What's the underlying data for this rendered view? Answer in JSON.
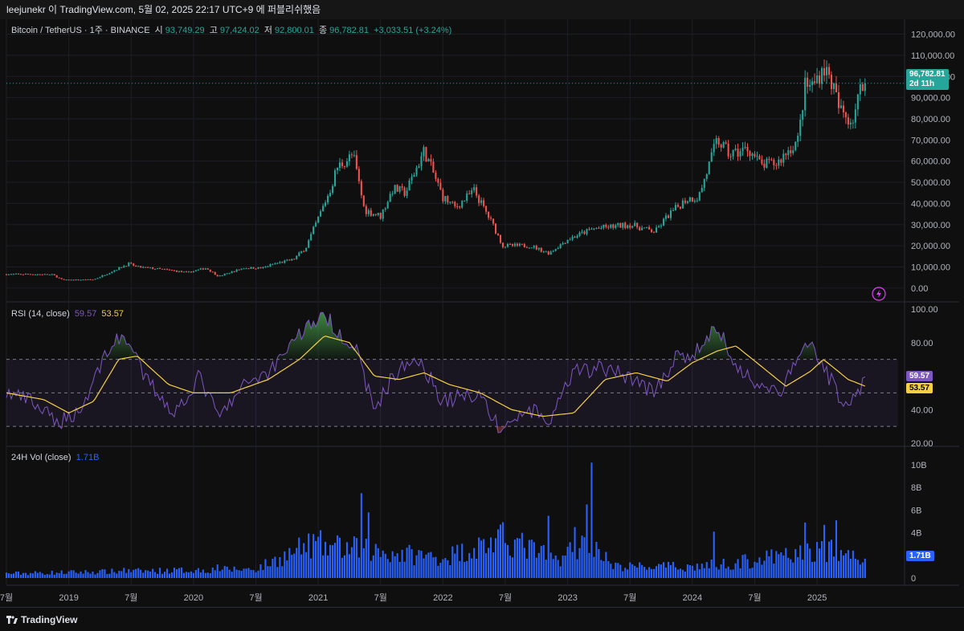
{
  "header": {
    "watermark": "leejunekr 이 TradingView.com, 5월 02, 2025 22:17 UTC+9 에 퍼블리쉬했음"
  },
  "legend": {
    "symbol": "Bitcoin / TetherUS · 1주 · BINANCE",
    "open_label": "시",
    "open": "93,749.29",
    "high_label": "고",
    "high": "97,424.02",
    "low_label": "저",
    "low": "92,800.01",
    "close_label": "종",
    "close": "96,782.81",
    "change": "+3,033.51 (+3.24%)",
    "rsi_label": "RSI (14, close)",
    "rsi_value": "59.57",
    "rsi_ma_value": "53.57",
    "vol_label": "24H Vol (close)",
    "vol_value": "1.71B"
  },
  "tags": {
    "price": "96,782.81",
    "countdown": "2d 11h",
    "rsi": "59.57",
    "rsi_ma": "53.57",
    "vol": "1.71B"
  },
  "footer": {
    "brand": "TradingView"
  },
  "colors": {
    "up": "#26a69a",
    "down": "#ef5350",
    "rsi": "#7e57c2",
    "rsi_ma": "#f5d142",
    "volume": "#2962ff"
  },
  "chart_data": [
    {
      "type": "line",
      "name": "price",
      "ylim": [
        -5000,
        124000
      ],
      "y_ticks": [
        "120,000.00",
        "110,000.00",
        "100,000.00",
        "90,000.00",
        "80,000.00",
        "70,000.00",
        "60,000.00",
        "50,000.00",
        "40,000.00",
        "30,000.00",
        "20,000.00",
        "10,000.00",
        "0.00"
      ],
      "y_tick_values": [
        120000,
        110000,
        100000,
        90000,
        80000,
        70000,
        60000,
        50000,
        40000,
        30000,
        20000,
        10000,
        0
      ],
      "x_ticks": [
        "7월",
        "2019",
        "7월",
        "2020",
        "7월",
        "2021",
        "7월",
        "2022",
        "7월",
        "2023",
        "7월",
        "2024",
        "7월",
        "2025"
      ],
      "x_tick_years": [
        2018.5,
        2019.0,
        2019.5,
        2020.0,
        2020.5,
        2021.0,
        2021.5,
        2022.0,
        2022.5,
        2023.0,
        2023.5,
        2024.0,
        2024.5,
        2025.0
      ],
      "x_range": [
        2018.5,
        2025.65
      ],
      "keypoints": [
        [
          2018.5,
          6500
        ],
        [
          2018.7,
          6600
        ],
        [
          2018.87,
          6300
        ],
        [
          2018.95,
          3800
        ],
        [
          2019.2,
          4000
        ],
        [
          2019.35,
          8000
        ],
        [
          2019.48,
          11500
        ],
        [
          2019.55,
          10000
        ],
        [
          2019.8,
          8500
        ],
        [
          2019.95,
          7300
        ],
        [
          2020.1,
          9500
        ],
        [
          2020.2,
          5500
        ],
        [
          2020.4,
          9500
        ],
        [
          2020.55,
          9500
        ],
        [
          2020.65,
          11500
        ],
        [
          2020.8,
          13500
        ],
        [
          2020.9,
          19000
        ],
        [
          2021.0,
          33000
        ],
        [
          2021.1,
          47000
        ],
        [
          2021.15,
          57000
        ],
        [
          2021.28,
          63000
        ],
        [
          2021.37,
          37000
        ],
        [
          2021.5,
          34000
        ],
        [
          2021.6,
          47000
        ],
        [
          2021.7,
          45000
        ],
        [
          2021.85,
          65000
        ],
        [
          2022.0,
          43000
        ],
        [
          2022.1,
          38000
        ],
        [
          2022.25,
          46000
        ],
        [
          2022.4,
          30000
        ],
        [
          2022.48,
          20000
        ],
        [
          2022.7,
          20000
        ],
        [
          2022.85,
          16500
        ],
        [
          2023.0,
          23000
        ],
        [
          2023.2,
          28000
        ],
        [
          2023.5,
          30000
        ],
        [
          2023.7,
          26500
        ],
        [
          2023.8,
          34000
        ],
        [
          2023.95,
          42000
        ],
        [
          2024.05,
          43000
        ],
        [
          2024.2,
          70000
        ],
        [
          2024.3,
          63000
        ],
        [
          2024.45,
          66000
        ],
        [
          2024.55,
          58000
        ],
        [
          2024.68,
          59000
        ],
        [
          2024.75,
          64000
        ],
        [
          2024.85,
          70000
        ],
        [
          2024.9,
          95000
        ],
        [
          2024.97,
          96000
        ],
        [
          2025.05,
          105000
        ],
        [
          2025.12,
          97000
        ],
        [
          2025.18,
          84000
        ],
        [
          2025.28,
          79000
        ],
        [
          2025.35,
          94000
        ],
        [
          2025.4,
          96782
        ]
      ]
    },
    {
      "type": "line",
      "name": "rsi",
      "ylim": [
        20,
        100
      ],
      "y_ticks": [
        "100.00",
        "80.00",
        "60.00",
        "40.00",
        "20.00"
      ],
      "y_tick_values": [
        100,
        80,
        60,
        40,
        20
      ],
      "bands": [
        30,
        50,
        70
      ],
      "keypoints": [
        [
          2018.5,
          50
        ],
        [
          2018.7,
          45
        ],
        [
          2018.9,
          32
        ],
        [
          2019.1,
          40
        ],
        [
          2019.3,
          75
        ],
        [
          2019.45,
          85
        ],
        [
          2019.6,
          60
        ],
        [
          2019.85,
          38
        ],
        [
          2020.05,
          60
        ],
        [
          2020.2,
          35
        ],
        [
          2020.45,
          58
        ],
        [
          2020.6,
          62
        ],
        [
          2020.8,
          82
        ],
        [
          2020.95,
          92
        ],
        [
          2021.05,
          96
        ],
        [
          2021.15,
          88
        ],
        [
          2021.3,
          76
        ],
        [
          2021.45,
          40
        ],
        [
          2021.6,
          60
        ],
        [
          2021.8,
          72
        ],
        [
          2022.0,
          45
        ],
        [
          2022.15,
          48
        ],
        [
          2022.3,
          50
        ],
        [
          2022.45,
          28
        ],
        [
          2022.7,
          40
        ],
        [
          2022.85,
          32
        ],
        [
          2023.05,
          62
        ],
        [
          2023.25,
          65
        ],
        [
          2023.5,
          60
        ],
        [
          2023.7,
          50
        ],
        [
          2023.85,
          70
        ],
        [
          2024.0,
          72
        ],
        [
          2024.2,
          90
        ],
        [
          2024.35,
          65
        ],
        [
          2024.55,
          55
        ],
        [
          2024.7,
          50
        ],
        [
          2024.85,
          70
        ],
        [
          2024.95,
          82
        ],
        [
          2025.05,
          66
        ],
        [
          2025.2,
          45
        ],
        [
          2025.3,
          48
        ],
        [
          2025.4,
          59.57
        ]
      ],
      "ma_keypoints": [
        [
          2018.5,
          50
        ],
        [
          2018.8,
          46
        ],
        [
          2019.0,
          38
        ],
        [
          2019.2,
          45
        ],
        [
          2019.4,
          70
        ],
        [
          2019.55,
          72
        ],
        [
          2019.8,
          55
        ],
        [
          2020.0,
          50
        ],
        [
          2020.3,
          50
        ],
        [
          2020.6,
          58
        ],
        [
          2020.85,
          70
        ],
        [
          2021.05,
          84
        ],
        [
          2021.25,
          80
        ],
        [
          2021.45,
          60
        ],
        [
          2021.65,
          58
        ],
        [
          2021.85,
          62
        ],
        [
          2022.05,
          55
        ],
        [
          2022.3,
          50
        ],
        [
          2022.55,
          40
        ],
        [
          2022.8,
          36
        ],
        [
          2023.05,
          38
        ],
        [
          2023.3,
          58
        ],
        [
          2023.55,
          62
        ],
        [
          2023.8,
          57
        ],
        [
          2024.0,
          68
        ],
        [
          2024.2,
          75
        ],
        [
          2024.35,
          78
        ],
        [
          2024.55,
          66
        ],
        [
          2024.75,
          54
        ],
        [
          2024.95,
          63
        ],
        [
          2025.05,
          70
        ],
        [
          2025.25,
          58
        ],
        [
          2025.4,
          53.57
        ]
      ]
    },
    {
      "type": "bar",
      "name": "volume",
      "ylim": [
        0,
        10500000000
      ],
      "y_ticks": [
        "10B",
        "8B",
        "6B",
        "4B",
        "2B",
        "0"
      ],
      "y_tick_values": [
        10000000000,
        8000000000,
        6000000000,
        4000000000,
        2000000000,
        0
      ],
      "levels": [
        [
          2018.5,
          0.4
        ],
        [
          2020.5,
          0.8
        ],
        [
          2020.95,
          3.0
        ],
        [
          2021.6,
          2.2
        ],
        [
          2022.0,
          1.8
        ],
        [
          2022.5,
          3.5
        ],
        [
          2022.9,
          1.6
        ],
        [
          2023.2,
          3.5
        ],
        [
          2023.35,
          1.0
        ],
        [
          2024.0,
          1.0
        ],
        [
          2024.3,
          1.3
        ],
        [
          2024.8,
          2.0
        ],
        [
          2025.05,
          2.5
        ],
        [
          2025.4,
          1.71
        ]
      ],
      "spikes": [
        [
          2019.45,
          0.9
        ],
        [
          2020.2,
          1.2
        ],
        [
          2021.05,
          3.2
        ],
        [
          2021.35,
          7.5
        ],
        [
          2021.4,
          5.8
        ],
        [
          2022.45,
          4.3
        ],
        [
          2022.85,
          5.5
        ],
        [
          2023.05,
          4.5
        ],
        [
          2023.15,
          6.5
        ],
        [
          2023.2,
          10.2
        ],
        [
          2024.18,
          4.1
        ],
        [
          2024.9,
          4.9
        ],
        [
          2025.05,
          4.7
        ],
        [
          2025.15,
          5.1
        ]
      ]
    }
  ]
}
